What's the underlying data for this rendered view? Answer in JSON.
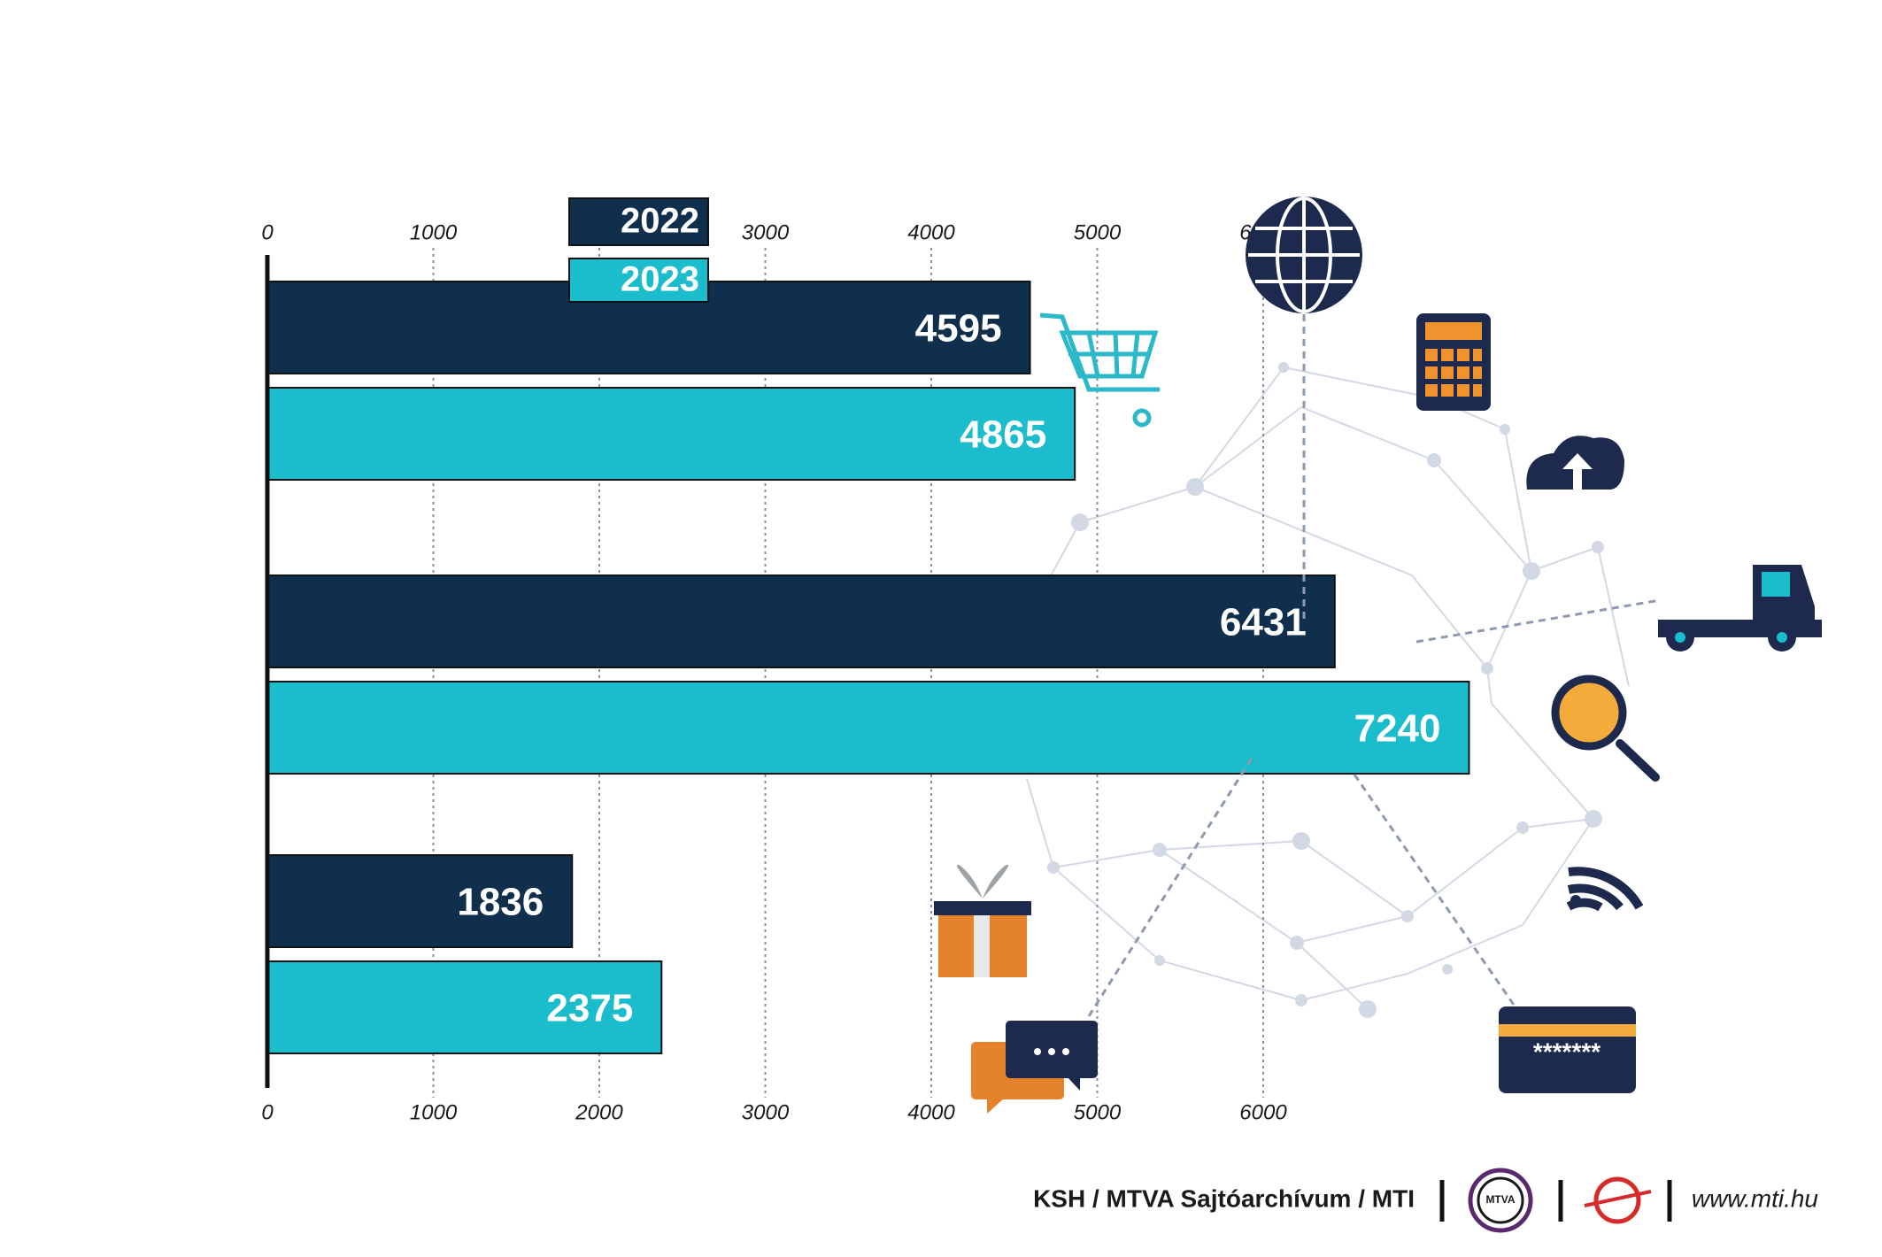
{
  "chart_data": {
    "type": "bar",
    "orientation": "horizontal",
    "categories": [
      null,
      null,
      null
    ],
    "series": [
      {
        "name": "2022",
        "color": "#0f2f4c",
        "values": [
          4595,
          6431,
          1836
        ]
      },
      {
        "name": "2023",
        "color": "#1bbccb",
        "values": [
          4865,
          7240,
          2375
        ]
      }
    ],
    "xlim": [
      0,
      8000
    ],
    "xticks": [
      0,
      1000,
      2000,
      3000,
      4000,
      5000,
      6000
    ],
    "grid": true
  },
  "footer": {
    "source": "KSH / MTVA Sajtóarchívum / MTI",
    "logo": "MTVA",
    "url": "www.mti.hu"
  },
  "card_text": "*******"
}
